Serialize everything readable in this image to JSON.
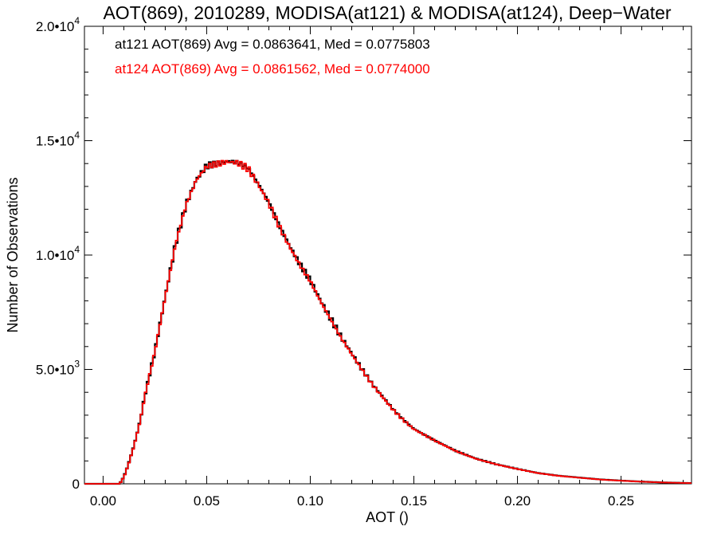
{
  "chart_data": {
    "type": "line",
    "title": "AOT(869), 2010289, MODISA(at121) & MODISA(at124), Deep−Water",
    "xlabel": "AOT ()",
    "ylabel": "Number of Observations",
    "xlim": [
      -0.009,
      0.284
    ],
    "ylim": [
      0,
      20000
    ],
    "x_ticks": [
      0.0,
      0.05,
      0.1,
      0.15,
      0.2,
      0.25
    ],
    "x_tick_labels": [
      "0.00",
      "0.05",
      "0.10",
      "0.15",
      "0.20",
      "0.25"
    ],
    "y_ticks": [
      0,
      5000,
      10000,
      15000,
      20000
    ],
    "y_tick_labels": [
      {
        "mant": "0",
        "exp": ""
      },
      {
        "mant": "5.0•10",
        "exp": "3"
      },
      {
        "mant": "1.0•10",
        "exp": "4"
      },
      {
        "mant": "1.5•10",
        "exp": "4"
      },
      {
        "mant": "2.0•10",
        "exp": "4"
      }
    ],
    "grid": false,
    "legend_position": "top-left",
    "colors": {
      "at121": "#000000",
      "at124": "#ff0000"
    },
    "x": [
      -0.009,
      0.0,
      0.005,
      0.008,
      0.01,
      0.012,
      0.015,
      0.018,
      0.02,
      0.025,
      0.03,
      0.035,
      0.04,
      0.045,
      0.05,
      0.055,
      0.06,
      0.065,
      0.07,
      0.075,
      0.08,
      0.085,
      0.09,
      0.095,
      0.1,
      0.105,
      0.11,
      0.115,
      0.12,
      0.125,
      0.13,
      0.135,
      0.14,
      0.145,
      0.15,
      0.155,
      0.16,
      0.17,
      0.18,
      0.19,
      0.2,
      0.21,
      0.22,
      0.23,
      0.24,
      0.25,
      0.26,
      0.27,
      0.284
    ],
    "series": [
      {
        "name": "at121",
        "legend": "at121 AOT(869) Avg = 0.0863641, Med = 0.0775803",
        "values": [
          0,
          0,
          0,
          0,
          300,
          800,
          1700,
          2800,
          3800,
          5800,
          8200,
          10500,
          12200,
          13300,
          13900,
          14000,
          14100,
          14050,
          13800,
          13100,
          12300,
          11300,
          10400,
          9600,
          8900,
          8000,
          7200,
          6400,
          5700,
          5000,
          4350,
          3800,
          3250,
          2800,
          2400,
          2150,
          1900,
          1450,
          1100,
          850,
          650,
          470,
          350,
          270,
          190,
          140,
          95,
          60,
          30
        ]
      },
      {
        "name": "at124",
        "legend": "at124 AOT(869) Avg = 0.0861562, Med = 0.0774000",
        "values": [
          0,
          0,
          0,
          0,
          280,
          780,
          1680,
          2780,
          3780,
          5780,
          8180,
          10480,
          12180,
          13280,
          13880,
          13980,
          14080,
          14030,
          13780,
          13060,
          12260,
          11260,
          10360,
          9560,
          8860,
          7960,
          7160,
          6360,
          5670,
          4980,
          4330,
          3780,
          3230,
          2780,
          2385,
          2140,
          1890,
          1440,
          1090,
          845,
          645,
          465,
          345,
          265,
          185,
          135,
          92,
          58,
          28
        ]
      }
    ]
  }
}
